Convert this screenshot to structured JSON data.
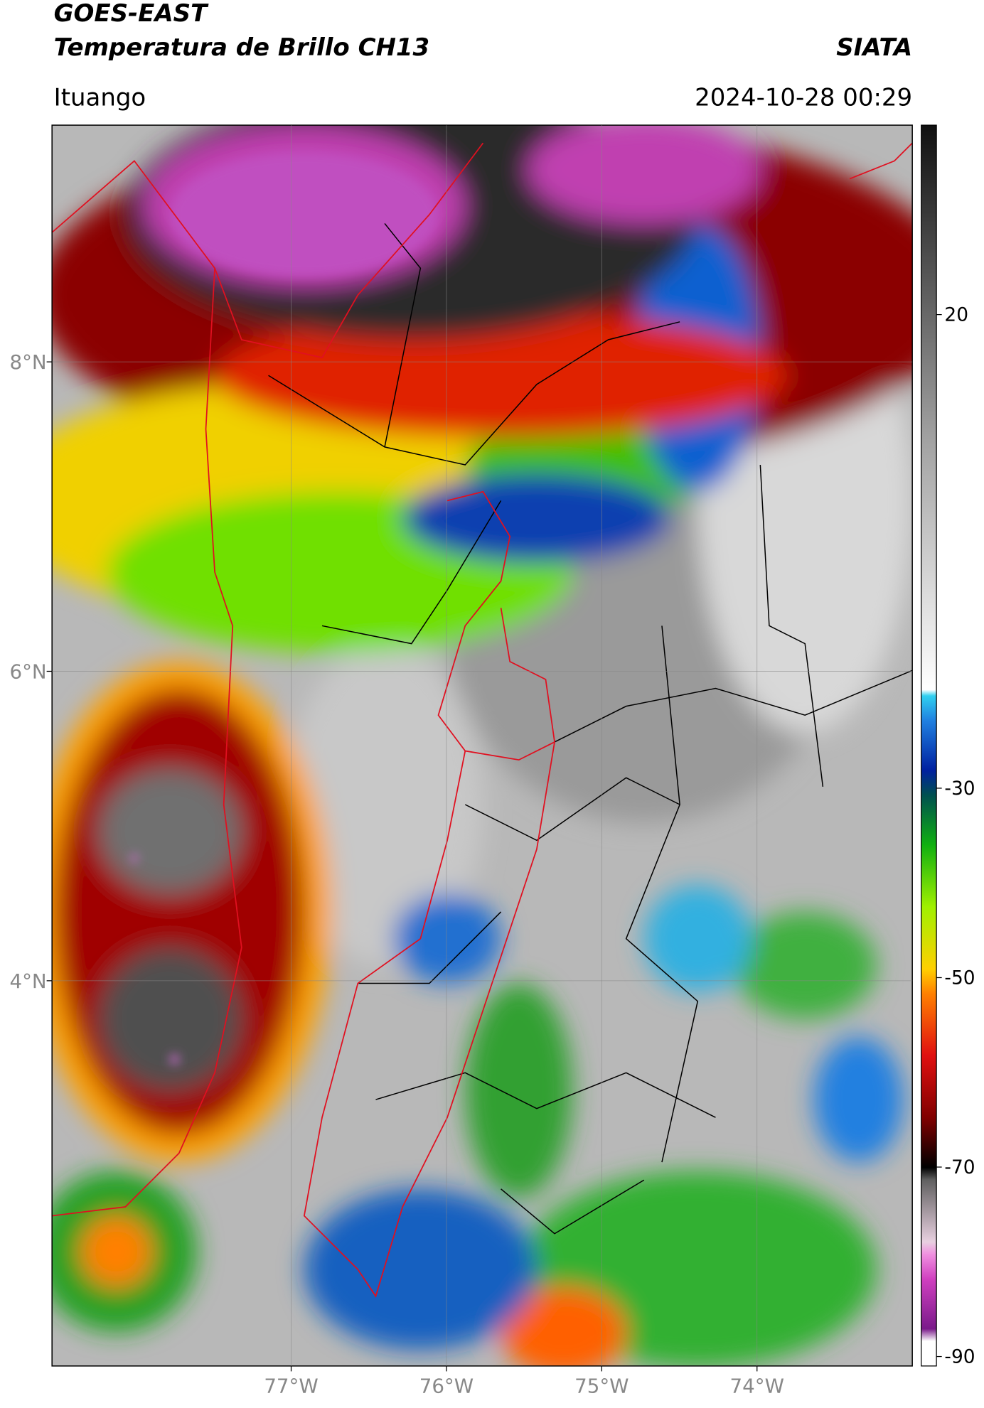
{
  "chart_data": {
    "type": "satellite-map",
    "title": "GOES-EAST",
    "subtitle": "Temperatura de Brillo CH13",
    "source": "SIATA",
    "location": "Ituango",
    "datetime": "2024-10-28 00:29",
    "xlim": [
      -78.54,
      -73.0
    ],
    "ylim": [
      1.51,
      9.53
    ],
    "xticks": [
      {
        "value": -77,
        "label": "77°W"
      },
      {
        "value": -76,
        "label": "76°W"
      },
      {
        "value": -75,
        "label": "75°W"
      },
      {
        "value": -74,
        "label": "74°W"
      }
    ],
    "yticks": [
      {
        "value": 8,
        "label": "8°N"
      },
      {
        "value": 6,
        "label": "6°N"
      },
      {
        "value": 4,
        "label": "4°N"
      }
    ],
    "grid": true,
    "colorbar": {
      "clim": [
        -91,
        40
      ],
      "ticks": [
        20,
        -30,
        -50,
        -70,
        -90
      ]
    }
  }
}
